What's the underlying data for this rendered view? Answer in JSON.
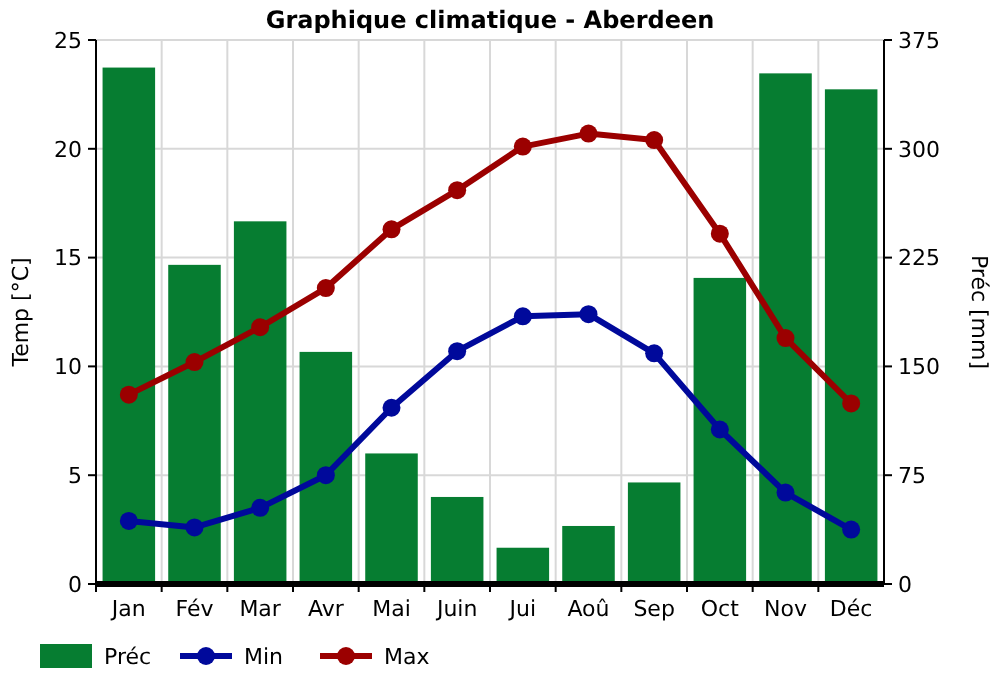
{
  "chart_data": {
    "type": "bar",
    "title": "Graphique climatique - Aberdeen",
    "ylabel": "Temp [°C]",
    "y2label": "Préc [mm]",
    "categories": [
      "Jan",
      "Fév",
      "Mar",
      "Avr",
      "Mai",
      "Juin",
      "Jui",
      "Aoû",
      "Sep",
      "Oct",
      "Nov",
      "Déc"
    ],
    "series": [
      {
        "name": "Préc",
        "axis": "y2",
        "color": "#067d31",
        "values": [
          356,
          220,
          250,
          160,
          90,
          60,
          25,
          40,
          70,
          211,
          352,
          341
        ]
      },
      {
        "name": "Min",
        "type": "line",
        "color": "#00099b",
        "values": [
          2.9,
          2.6,
          3.5,
          5.0,
          8.1,
          10.7,
          12.3,
          12.4,
          10.6,
          7.1,
          4.2,
          2.5
        ]
      },
      {
        "name": "Max",
        "type": "line",
        "color": "#9b0000",
        "values": [
          8.7,
          10.2,
          11.8,
          13.6,
          16.3,
          18.1,
          20.1,
          20.7,
          20.4,
          16.1,
          11.3,
          8.3
        ]
      }
    ],
    "ylim": [
      0,
      25
    ],
    "yticks": [
      0,
      5,
      10,
      15,
      20,
      25
    ],
    "y2lim": [
      0,
      375
    ],
    "y2ticks": [
      0,
      75,
      150,
      225,
      300,
      375
    ],
    "grid": true,
    "legend": "bottom",
    "marker": "circle"
  }
}
